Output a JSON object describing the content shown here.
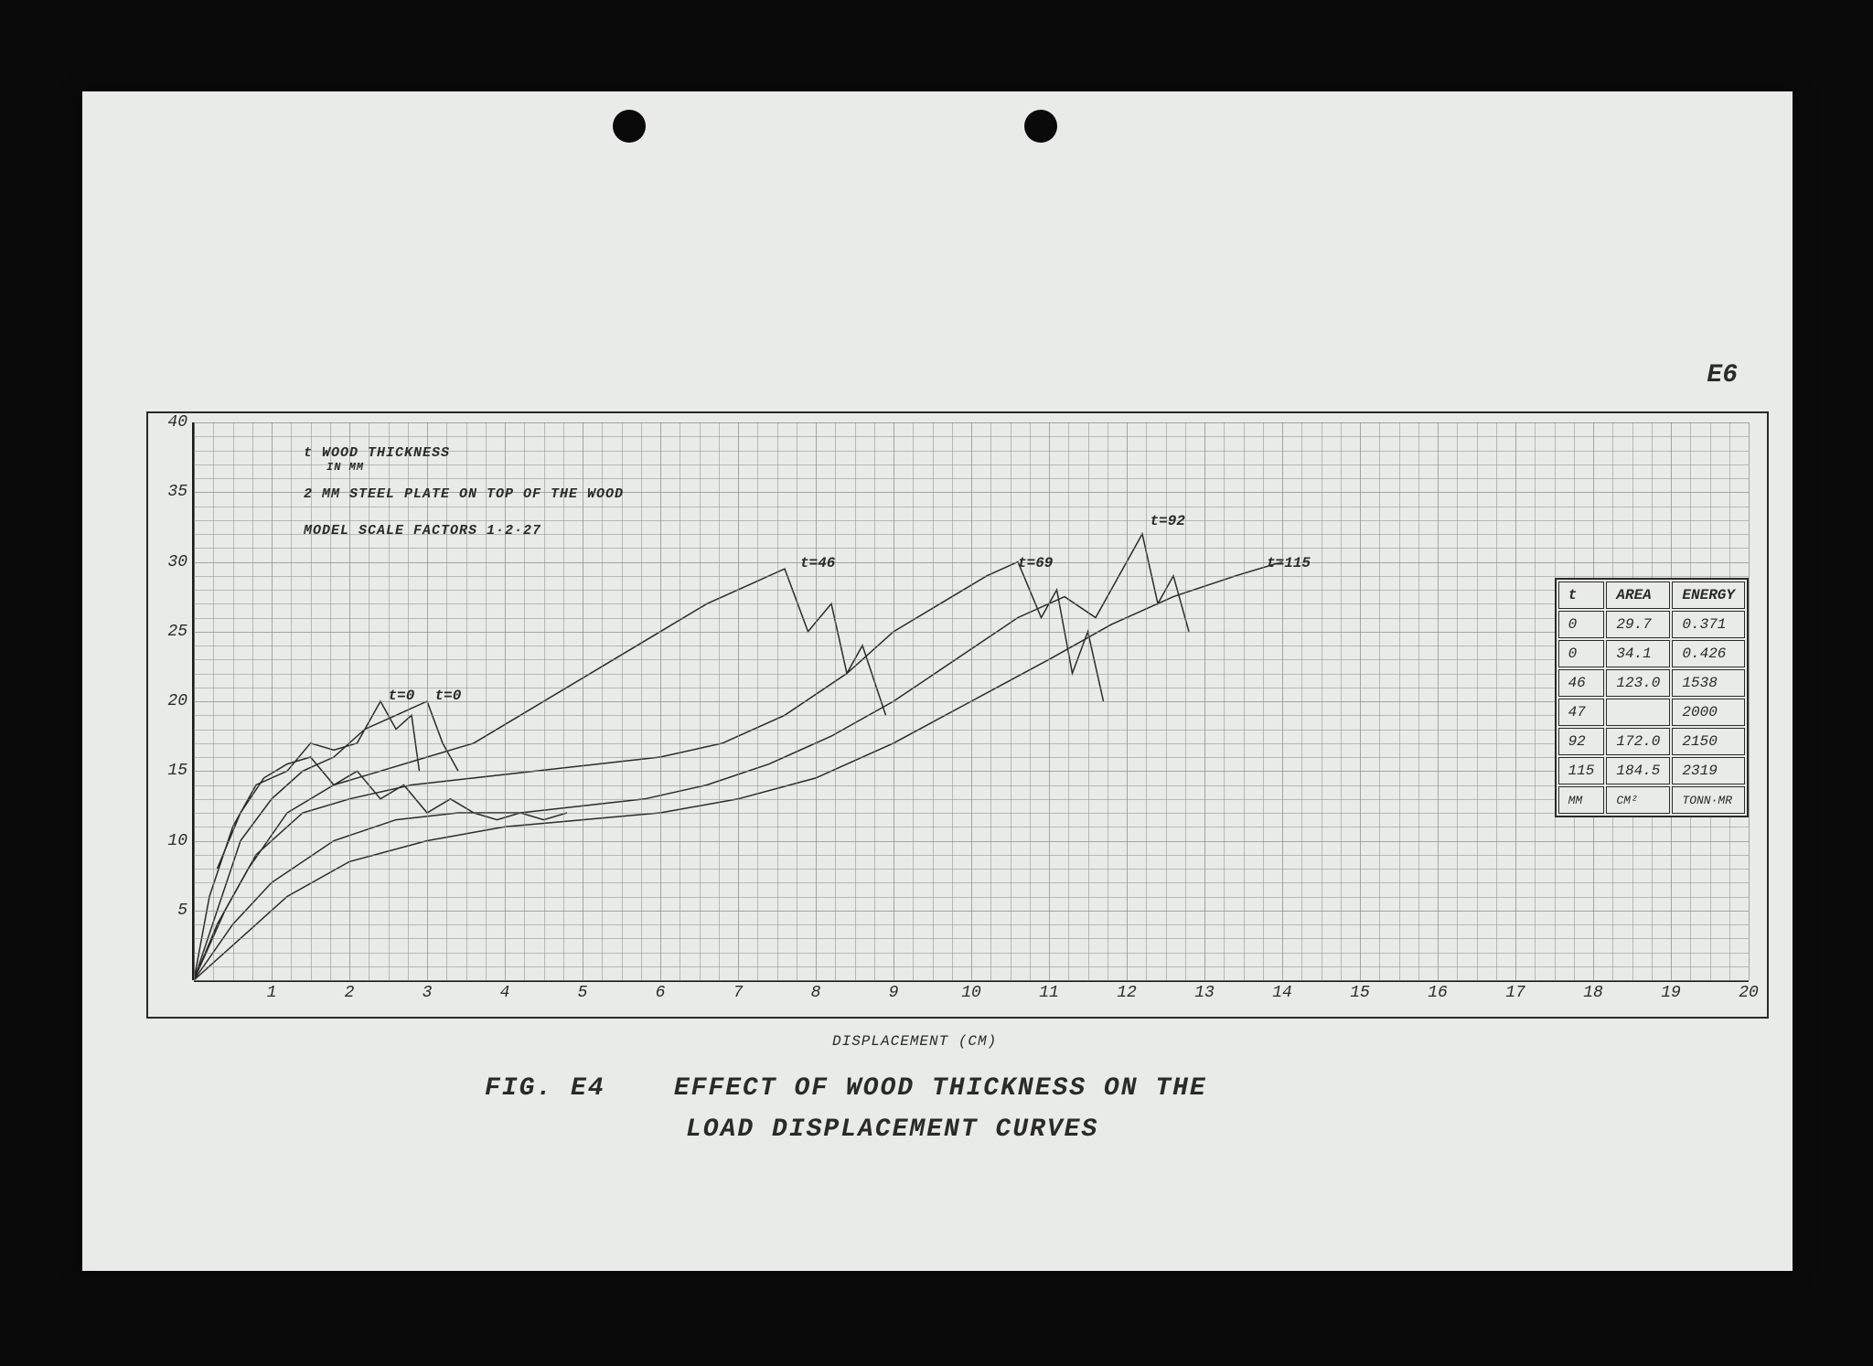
{
  "page_label": "E6",
  "punch_holes": {
    "left1": 580,
    "left2": 1030
  },
  "chart": {
    "type": "line",
    "background_color": "#e8ebe7",
    "frame_color": "#2a2a2a",
    "grid_color": "#888888",
    "curve_color": "#2a2a2a",
    "xlim": [
      0,
      20
    ],
    "ylim": [
      0,
      40
    ],
    "x_ticks": [
      1,
      2,
      3,
      4,
      5,
      6,
      7,
      8,
      9,
      10,
      11,
      12,
      13,
      14,
      15,
      16,
      17,
      18,
      19,
      20
    ],
    "y_ticks": [
      5,
      10,
      15,
      20,
      25,
      30,
      35,
      40
    ],
    "x_minor_per_major": 4,
    "y_minor_per_major": 5,
    "x_axis_label": "DISPLACEMENT (CM)",
    "legend": {
      "line1": "t  WOOD THICKNESS",
      "line1b": "IN MM",
      "line2": "2 MM STEEL PLATE ON TOP OF THE WOOD",
      "line3": "MODEL SCALE FACTORS  1·2·27"
    },
    "curve_labels": [
      {
        "text": "t=0",
        "x": 2.5,
        "y": 21
      },
      {
        "text": "t=0",
        "x": 3.1,
        "y": 21
      },
      {
        "text": "t=46",
        "x": 7.8,
        "y": 30.5
      },
      {
        "text": "t=69",
        "x": 10.6,
        "y": 30.5
      },
      {
        "text": "t=92",
        "x": 12.3,
        "y": 33.5
      },
      {
        "text": "t=115",
        "x": 13.8,
        "y": 30.5
      }
    ],
    "series": [
      {
        "name": "t0a",
        "points": [
          [
            0,
            0
          ],
          [
            0.2,
            6
          ],
          [
            0.5,
            11
          ],
          [
            0.8,
            14
          ],
          [
            1.2,
            15
          ],
          [
            1.5,
            17
          ],
          [
            1.8,
            16.5
          ],
          [
            2.1,
            17
          ],
          [
            2.4,
            20
          ],
          [
            2.6,
            18
          ],
          [
            2.8,
            19
          ],
          [
            2.9,
            15
          ]
        ]
      },
      {
        "name": "t0b",
        "points": [
          [
            0,
            0
          ],
          [
            0.3,
            5
          ],
          [
            0.6,
            10
          ],
          [
            1.0,
            13
          ],
          [
            1.4,
            15
          ],
          [
            1.8,
            16
          ],
          [
            2.2,
            18
          ],
          [
            2.6,
            19
          ],
          [
            3.0,
            20
          ],
          [
            3.2,
            17
          ],
          [
            3.4,
            15
          ]
        ]
      },
      {
        "name": "t46",
        "points": [
          [
            0,
            0
          ],
          [
            0.3,
            4
          ],
          [
            0.7,
            8
          ],
          [
            1.2,
            12
          ],
          [
            1.8,
            14
          ],
          [
            2.4,
            15
          ],
          [
            3.0,
            16
          ],
          [
            3.6,
            17
          ],
          [
            4.2,
            19
          ],
          [
            4.8,
            21
          ],
          [
            5.4,
            23
          ],
          [
            6.0,
            25
          ],
          [
            6.6,
            27
          ],
          [
            7.2,
            28.5
          ],
          [
            7.6,
            29.5
          ],
          [
            7.9,
            25
          ],
          [
            8.2,
            27
          ],
          [
            8.4,
            22
          ],
          [
            8.6,
            24
          ],
          [
            8.9,
            19
          ]
        ]
      },
      {
        "name": "t69",
        "points": [
          [
            0,
            0
          ],
          [
            0.4,
            5
          ],
          [
            0.8,
            9
          ],
          [
            1.4,
            12
          ],
          [
            2.0,
            13
          ],
          [
            2.8,
            14
          ],
          [
            3.6,
            14.5
          ],
          [
            4.4,
            15
          ],
          [
            5.2,
            15.5
          ],
          [
            6.0,
            16
          ],
          [
            6.8,
            17
          ],
          [
            7.6,
            19
          ],
          [
            8.4,
            22
          ],
          [
            9.0,
            25
          ],
          [
            9.6,
            27
          ],
          [
            10.2,
            29
          ],
          [
            10.6,
            30
          ],
          [
            10.9,
            26
          ],
          [
            11.1,
            28
          ],
          [
            11.3,
            22
          ],
          [
            11.5,
            25
          ],
          [
            11.7,
            20
          ]
        ]
      },
      {
        "name": "t92",
        "points": [
          [
            0,
            0
          ],
          [
            0.5,
            4
          ],
          [
            1.0,
            7
          ],
          [
            1.8,
            10
          ],
          [
            2.6,
            11.5
          ],
          [
            3.4,
            12
          ],
          [
            4.2,
            12
          ],
          [
            5.0,
            12.5
          ],
          [
            5.8,
            13
          ],
          [
            6.6,
            14
          ],
          [
            7.4,
            15.5
          ],
          [
            8.2,
            17.5
          ],
          [
            9.0,
            20
          ],
          [
            9.8,
            23
          ],
          [
            10.6,
            26
          ],
          [
            11.2,
            27.5
          ],
          [
            11.6,
            26
          ],
          [
            11.9,
            29
          ],
          [
            12.2,
            32
          ],
          [
            12.4,
            27
          ],
          [
            12.6,
            29
          ],
          [
            12.8,
            25
          ]
        ]
      },
      {
        "name": "t115",
        "points": [
          [
            0,
            0
          ],
          [
            0.6,
            3
          ],
          [
            1.2,
            6
          ],
          [
            2.0,
            8.5
          ],
          [
            3.0,
            10
          ],
          [
            4.0,
            11
          ],
          [
            5.0,
            11.5
          ],
          [
            6.0,
            12
          ],
          [
            7.0,
            13
          ],
          [
            8.0,
            14.5
          ],
          [
            9.0,
            17
          ],
          [
            10.0,
            20
          ],
          [
            11.0,
            23
          ],
          [
            11.8,
            25.5
          ],
          [
            12.6,
            27.5
          ],
          [
            13.4,
            29
          ],
          [
            14.0,
            30
          ]
        ]
      },
      {
        "name": "low-noisy",
        "points": [
          [
            0.3,
            8
          ],
          [
            0.6,
            12
          ],
          [
            0.9,
            14.5
          ],
          [
            1.2,
            15.5
          ],
          [
            1.5,
            16
          ],
          [
            1.8,
            14
          ],
          [
            2.1,
            15
          ],
          [
            2.4,
            13
          ],
          [
            2.7,
            14
          ],
          [
            3.0,
            12
          ],
          [
            3.3,
            13
          ],
          [
            3.6,
            12
          ],
          [
            3.9,
            11.5
          ],
          [
            4.2,
            12
          ],
          [
            4.5,
            11.5
          ],
          [
            4.8,
            12
          ]
        ]
      }
    ]
  },
  "data_table": {
    "headers": [
      "t",
      "AREA",
      "ENERGY"
    ],
    "rows": [
      [
        "0",
        "29.7",
        "0.371"
      ],
      [
        "0",
        "34.1",
        "0.426"
      ],
      [
        "46",
        "123.0",
        "1538"
      ],
      [
        "47",
        "",
        "2000"
      ],
      [
        "92",
        "172.0",
        "2150"
      ],
      [
        "115",
        "184.5",
        "2319"
      ]
    ],
    "units": [
      "MM",
      "CM²",
      "TONN·MR"
    ]
  },
  "figure_caption": {
    "prefix": "FIG. E4",
    "line1": "EFFECT OF WOOD THICKNESS ON THE",
    "line2": "LOAD DISPLACEMENT CURVES"
  }
}
